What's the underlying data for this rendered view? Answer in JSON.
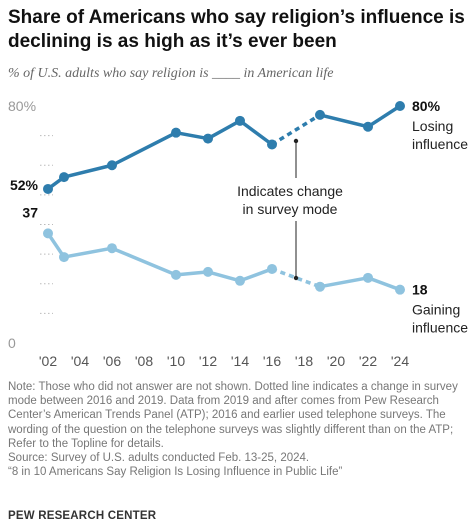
{
  "title": "Share of Americans who say religion’s influence is declining is as high as it’s ever been",
  "subtitle": "% of U.S. adults who say religion is ____ in American life",
  "chart_data": {
    "type": "line",
    "x": [
      2002,
      2003,
      2006,
      2010,
      2012,
      2014,
      2016,
      2019,
      2022,
      2024
    ],
    "xticks": [
      "'02",
      "'04",
      "'06",
      "'08",
      "'10",
      "'12",
      "'14",
      "'16",
      "'18",
      "'20",
      "'22",
      "'24"
    ],
    "xtick_years": [
      2002,
      2004,
      2006,
      2008,
      2010,
      2012,
      2014,
      2016,
      2018,
      2020,
      2022,
      2024
    ],
    "ylim": [
      0,
      80
    ],
    "yticks": [
      {
        "value": 80,
        "label": "80%"
      },
      {
        "value": 37,
        "label": "37"
      },
      {
        "value": 0,
        "label": "0"
      }
    ],
    "series": [
      {
        "name": "Losing influence",
        "color": "#2e7dad",
        "values": [
          52,
          56,
          60,
          71,
          69,
          75,
          67,
          77,
          73,
          80
        ],
        "start_label": "52%",
        "end_label": "80%",
        "name_lines": [
          "Losing",
          "influence"
        ]
      },
      {
        "name": "Gaining influence",
        "color": "#8fc3df",
        "values": [
          37,
          29,
          32,
          23,
          24,
          21,
          25,
          19,
          22,
          18
        ],
        "start_label": "37",
        "end_label": "18",
        "name_lines": [
          "Gaining",
          "influence"
        ]
      }
    ],
    "dotted_segment": {
      "from_year": 2016,
      "to_year": 2019
    },
    "annotation": {
      "lines": [
        "Indicates change",
        "in survey mode"
      ]
    },
    "grid": false
  },
  "notes": [
    "Note: Those who did not answer are not shown. Dotted line indicates a change in survey",
    "mode between 2016 and 2019. Data from 2019 and after comes from Pew Research",
    "Center’s American Trends Panel (ATP); 2016 and earlier used telephone surveys. The",
    "wording of the question on the telephone surveys was slightly different than on the ATP;",
    "Refer to the Topline for details.",
    "Source: Survey of U.S. adults conducted Feb. 13-25, 2024.",
    "“8 in 10 Americans Say Religion Is Losing Influence in Public Life”"
  ],
  "brand": "PEW RESEARCH CENTER"
}
